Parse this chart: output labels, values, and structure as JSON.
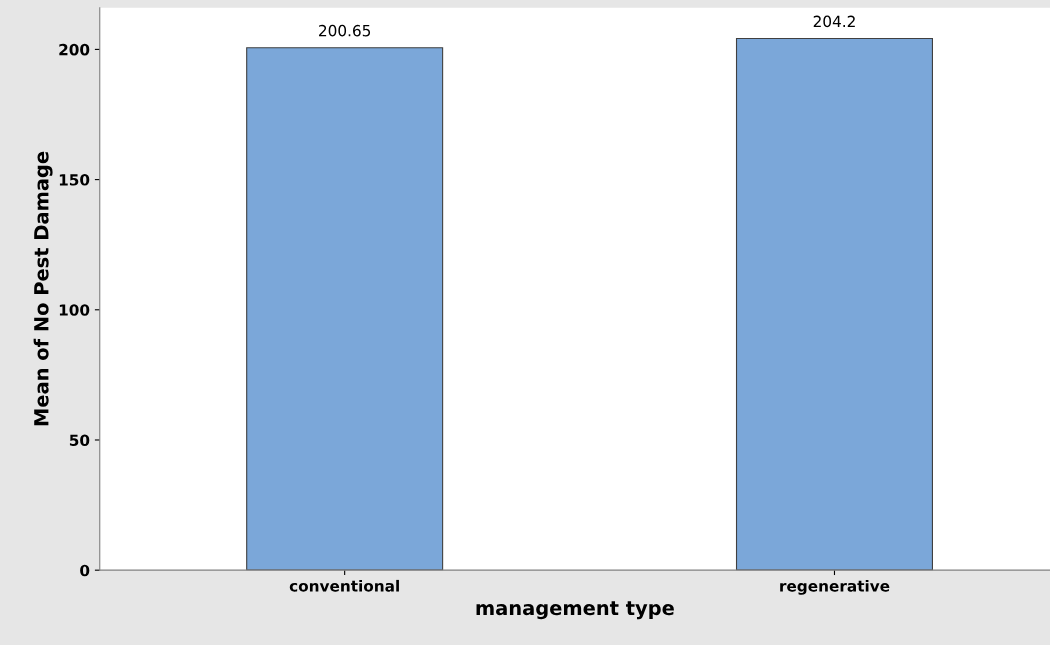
{
  "chart_data": {
    "type": "bar",
    "xlabel": "management type",
    "ylabel": "Mean of No Pest Damage",
    "categories": [
      "conventional",
      "regenerative"
    ],
    "values": [
      200.65,
      204.2
    ],
    "color": "#7ba7d9",
    "ylim": [
      0,
      216
    ],
    "yticks": [
      0,
      50,
      100,
      150,
      200
    ],
    "data_labels": true,
    "grid": false,
    "legend": false
  }
}
